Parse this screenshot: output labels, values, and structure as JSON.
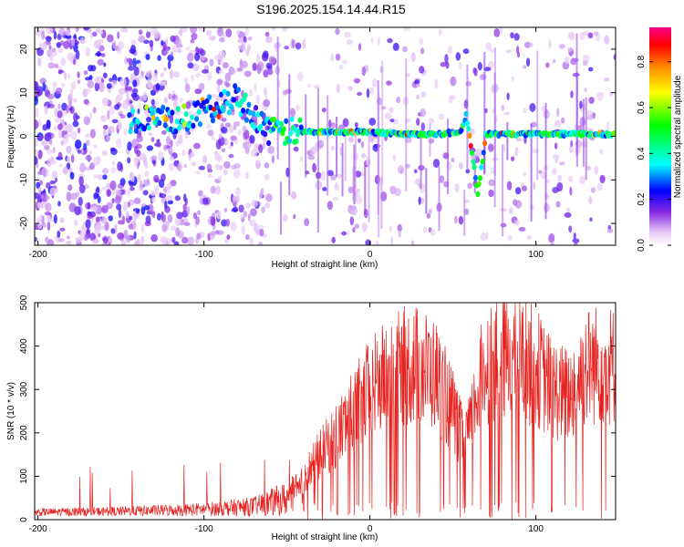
{
  "title": "S196.2025.154.14.44.R15",
  "colors": {
    "snr_line": "#e8221f",
    "background": "#ffffff",
    "frame": "#000000"
  },
  "chart_data": [
    {
      "type": "heatmap",
      "xlabel": "Height of straight line (km)",
      "ylabel": "Frequency (Hz)",
      "xlim": [
        -202,
        148
      ],
      "ylim": [
        -25,
        25
      ],
      "x_ticks": [
        "-200",
        "-100",
        "0",
        "100"
      ],
      "y_ticks": [
        "20",
        "10",
        "0",
        "-10",
        "-20"
      ],
      "x_tick_values": [
        -200,
        -100,
        0,
        100
      ],
      "y_tick_values": [
        20,
        10,
        0,
        -10,
        -20
      ],
      "colorbar": {
        "label": "Normalized spectral amplitude",
        "range": [
          0,
          0.95
        ],
        "ticks": [
          "0.0",
          "0.2",
          "0.4",
          "0.6",
          "0.8"
        ],
        "tick_values": [
          0,
          0.2,
          0.4,
          0.6,
          0.8
        ],
        "colormap": "white-purple-blue-cyan-green-yellow-orange-red-magenta"
      },
      "ridge": {
        "description_points_km_hz": [
          [
            -140,
            4
          ],
          [
            -110,
            4
          ],
          [
            -80,
            9
          ],
          [
            -60,
            1
          ],
          [
            -40,
            1
          ],
          [
            -20,
            1
          ],
          [
            0,
            1
          ],
          [
            20,
            0.5
          ],
          [
            40,
            0.5
          ],
          [
            55,
            1
          ],
          [
            58,
            5
          ],
          [
            62,
            -5
          ],
          [
            65,
            -13
          ],
          [
            70,
            0.5
          ],
          [
            100,
            0.5
          ],
          [
            147,
            0.5
          ]
        ]
      },
      "grid": false
    },
    {
      "type": "line",
      "xlabel": "Height of straight line (km)",
      "ylabel": "SNR (10 * v/v)",
      "xlim": [
        -202,
        148
      ],
      "ylim": [
        0,
        500
      ],
      "x_ticks": [
        "-200",
        "-100",
        "0",
        "100"
      ],
      "y_ticks": [
        "500",
        "400",
        "300",
        "200",
        "100",
        "0"
      ],
      "x_tick_values": [
        -200,
        -100,
        0,
        100
      ],
      "y_tick_values": [
        500,
        400,
        300,
        200,
        100,
        0
      ],
      "envelope": [
        [
          -202,
          20
        ],
        [
          -150,
          25
        ],
        [
          -100,
          35
        ],
        [
          -70,
          50
        ],
        [
          -50,
          90
        ],
        [
          -40,
          130
        ],
        [
          -30,
          200
        ],
        [
          -20,
          260
        ],
        [
          -10,
          330
        ],
        [
          0,
          400
        ],
        [
          10,
          440
        ],
        [
          20,
          470
        ],
        [
          30,
          475
        ],
        [
          40,
          440
        ],
        [
          50,
          330
        ],
        [
          55,
          260
        ],
        [
          60,
          270
        ],
        [
          65,
          400
        ],
        [
          70,
          480
        ],
        [
          80,
          500
        ],
        [
          90,
          495
        ],
        [
          100,
          470
        ],
        [
          110,
          400
        ],
        [
          120,
          380
        ],
        [
          130,
          470
        ],
        [
          140,
          480
        ],
        [
          148,
          470
        ]
      ],
      "grid": false
    }
  ]
}
